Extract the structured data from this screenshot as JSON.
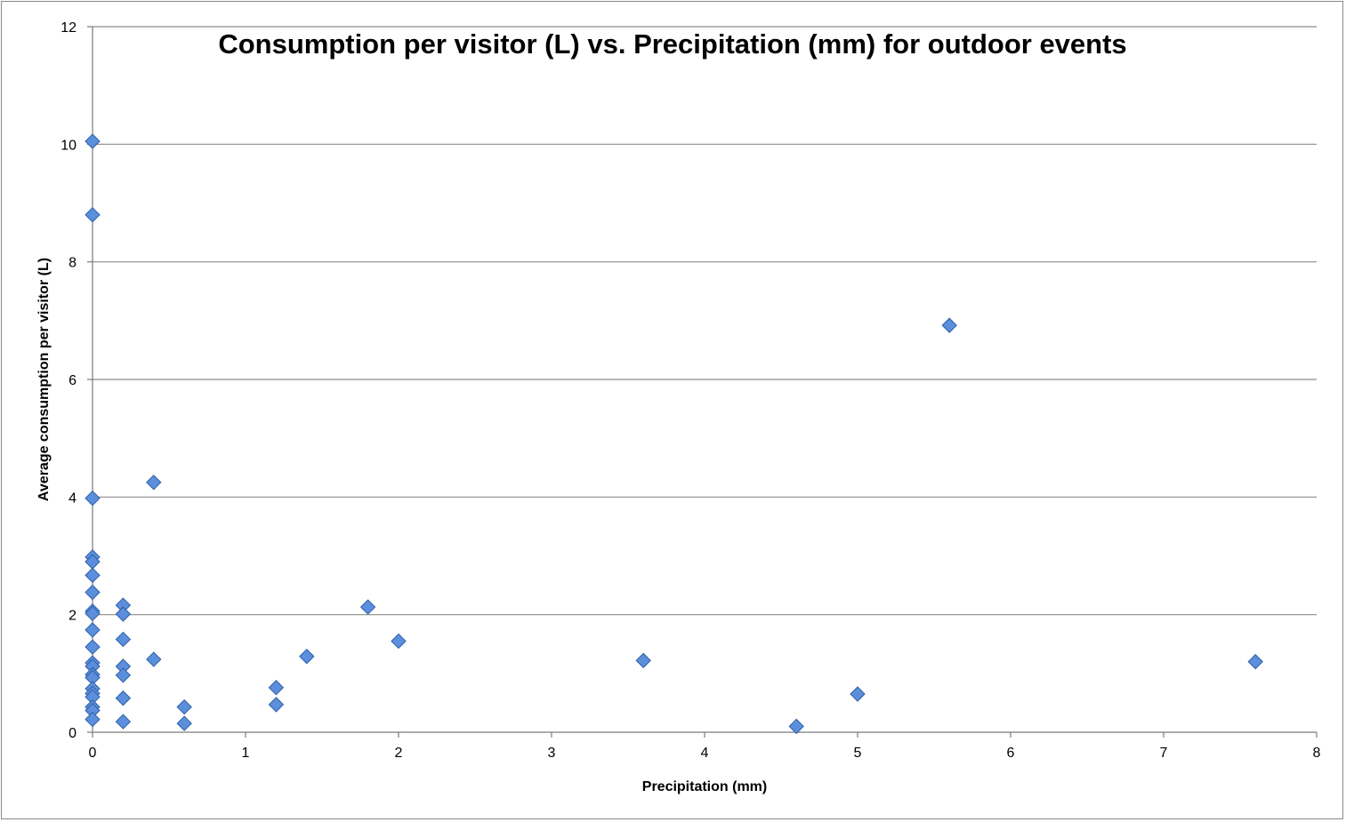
{
  "chart_data": {
    "type": "scatter",
    "title": "Consumption per visitor (L) vs. Precipitation (mm) for outdoor events",
    "xlabel": "Precipitation (mm)",
    "ylabel": "Average consumption per visitor (L)",
    "xlim": [
      0,
      8
    ],
    "ylim": [
      0,
      12
    ],
    "x_ticks": [
      "0",
      "1",
      "2",
      "3",
      "4",
      "5",
      "6",
      "7",
      "8"
    ],
    "y_ticks": [
      "0",
      "2",
      "4",
      "6",
      "8",
      "10",
      "12"
    ],
    "grid": "horizontal major gridlines",
    "legend": "none",
    "marker": "diamond",
    "marker_color": "#5b8fdc",
    "marker_edge_color": "#2e5fa8",
    "points": [
      {
        "x": 0,
        "y": 10.05
      },
      {
        "x": 0,
        "y": 8.8
      },
      {
        "x": 0,
        "y": 3.98
      },
      {
        "x": 0,
        "y": 2.98
      },
      {
        "x": 0,
        "y": 2.9
      },
      {
        "x": 0,
        "y": 2.67
      },
      {
        "x": 0,
        "y": 2.38
      },
      {
        "x": 0,
        "y": 2.06
      },
      {
        "x": 0,
        "y": 2.02
      },
      {
        "x": 0,
        "y": 1.74
      },
      {
        "x": 0,
        "y": 1.45
      },
      {
        "x": 0,
        "y": 1.18
      },
      {
        "x": 0,
        "y": 1.12
      },
      {
        "x": 0,
        "y": 0.98
      },
      {
        "x": 0,
        "y": 0.93
      },
      {
        "x": 0,
        "y": 0.74
      },
      {
        "x": 0,
        "y": 0.66
      },
      {
        "x": 0,
        "y": 0.6
      },
      {
        "x": 0,
        "y": 0.43
      },
      {
        "x": 0,
        "y": 0.37
      },
      {
        "x": 0,
        "y": 0.22
      },
      {
        "x": 0.2,
        "y": 2.16
      },
      {
        "x": 0.2,
        "y": 2.01
      },
      {
        "x": 0.2,
        "y": 1.58
      },
      {
        "x": 0.2,
        "y": 1.12
      },
      {
        "x": 0.2,
        "y": 0.97
      },
      {
        "x": 0.2,
        "y": 0.58
      },
      {
        "x": 0.2,
        "y": 0.18
      },
      {
        "x": 0.4,
        "y": 4.25
      },
      {
        "x": 0.4,
        "y": 1.24
      },
      {
        "x": 0.6,
        "y": 0.43
      },
      {
        "x": 0.6,
        "y": 0.15
      },
      {
        "x": 1.2,
        "y": 0.76
      },
      {
        "x": 1.2,
        "y": 0.47
      },
      {
        "x": 1.4,
        "y": 1.29
      },
      {
        "x": 1.8,
        "y": 2.13
      },
      {
        "x": 2.0,
        "y": 1.55
      },
      {
        "x": 3.6,
        "y": 1.22
      },
      {
        "x": 4.6,
        "y": 0.1
      },
      {
        "x": 5.0,
        "y": 0.65
      },
      {
        "x": 5.6,
        "y": 6.92
      },
      {
        "x": 7.6,
        "y": 1.2
      }
    ]
  }
}
